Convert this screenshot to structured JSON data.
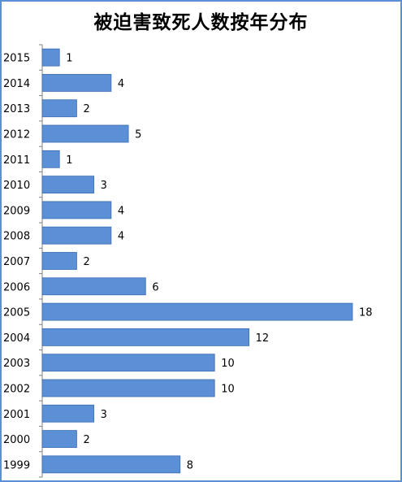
{
  "chart_data": {
    "type": "bar",
    "orientation": "horizontal",
    "title": "被迫害致死人数按年分布",
    "categories": [
      "2015",
      "2014",
      "2013",
      "2012",
      "2011",
      "2010",
      "2009",
      "2008",
      "2007",
      "2006",
      "2005",
      "2004",
      "2003",
      "2002",
      "2001",
      "2000",
      "1999"
    ],
    "values": [
      1,
      4,
      2,
      5,
      1,
      3,
      4,
      4,
      2,
      6,
      18,
      12,
      10,
      10,
      3,
      2,
      8
    ],
    "xlim": [
      0,
      18
    ],
    "grid": false,
    "legend": "none",
    "bar_color": "#5b8fd6",
    "bar_edge_color": "#3d6db1",
    "border_color": "#5b8fd6"
  }
}
